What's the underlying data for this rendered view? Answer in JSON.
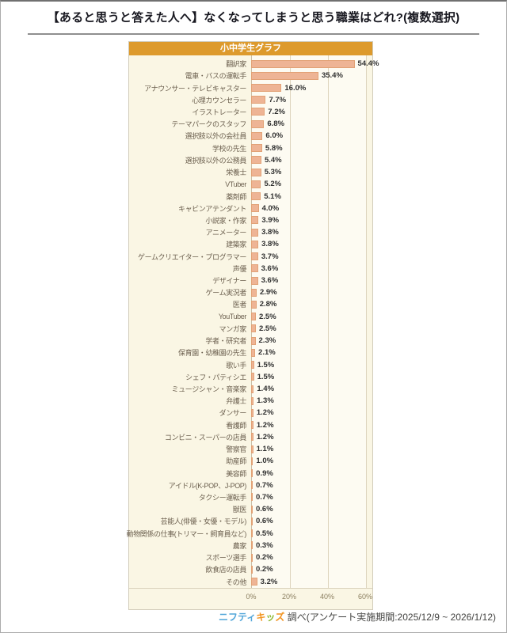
{
  "page": {
    "title": "【あると思うと答えた人へ】なくなってしまうと思う職業はどれ?(複数選択)"
  },
  "chart_data": {
    "type": "bar",
    "orientation": "horizontal",
    "title": "小中学生グラフ",
    "categories": [
      "翻訳家",
      "電車・バスの運転手",
      "アナウンサー・テレビキャスター",
      "心理カウンセラー",
      "イラストレーター",
      "テーマパークのスタッフ",
      "選択肢以外の会社員",
      "学校の先生",
      "選択肢以外の公務員",
      "栄養士",
      "VTuber",
      "薬剤師",
      "キャビンアテンダント",
      "小説家・作家",
      "アニメーター",
      "建築家",
      "ゲームクリエイター・プログラマー",
      "声優",
      "デザイナー",
      "ゲーム実況者",
      "医者",
      "YouTuber",
      "マンガ家",
      "学者・研究者",
      "保育園・幼稚園の先生",
      "歌い手",
      "シェフ・パティシエ",
      "ミュージシャン・音楽家",
      "弁護士",
      "ダンサー",
      "看護師",
      "コンビニ・スーパーの店員",
      "警察官",
      "助産師",
      "美容師",
      "アイドル(K-POP、J-POP)",
      "タクシー運転手",
      "獣医",
      "芸能人(俳優・女優・モデル)",
      "動物関係の仕事(トリマー・飼育員など)",
      "農家",
      "スポーツ選手",
      "飲食店の店員",
      "その他"
    ],
    "values": [
      54.4,
      35.4,
      16.0,
      7.7,
      7.2,
      6.8,
      6.0,
      5.8,
      5.4,
      5.3,
      5.2,
      5.1,
      4.0,
      3.9,
      3.8,
      3.8,
      3.7,
      3.6,
      3.6,
      2.9,
      2.8,
      2.5,
      2.5,
      2.3,
      2.1,
      1.5,
      1.5,
      1.4,
      1.3,
      1.2,
      1.2,
      1.2,
      1.1,
      1.0,
      0.9,
      0.7,
      0.7,
      0.6,
      0.6,
      0.5,
      0.3,
      0.2,
      0.2,
      3.2
    ],
    "value_suffix": "%",
    "xlim": [
      0,
      60
    ],
    "x_ticks": [
      "0%",
      "20%",
      "40%",
      "60%"
    ],
    "grid": true,
    "legend": "none",
    "colors": {
      "header_bg": "#dd9a2c",
      "bar_fill": "#eeb495",
      "bar_border": "#e2a276",
      "panel_bg": "#faf6e4",
      "plot_bg": "#fdfbf2",
      "gridline": "#ddd4bd"
    }
  },
  "footer": {
    "brand_nifty": "ニフティ",
    "brand_kids": [
      "キ",
      "ッ",
      "ズ"
    ],
    "brand_kids_colors": [
      "#f29422",
      "#8db832",
      "#f29422"
    ],
    "note": " 調べ(アンケート実施期間:2025/12/9 ~ 2026/1/12)"
  }
}
